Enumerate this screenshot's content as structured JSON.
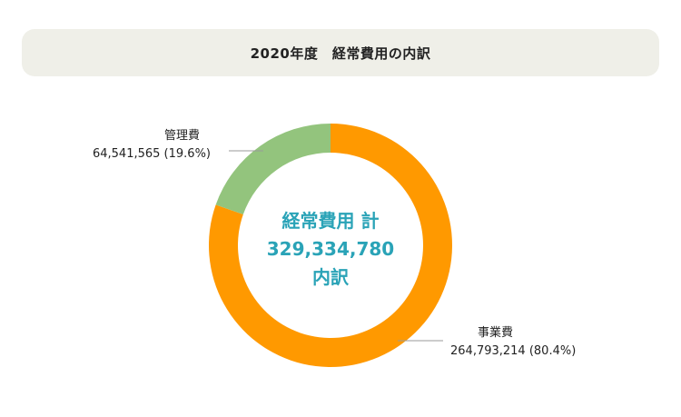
{
  "title": "2020年度　経常費用の内訳",
  "center": {
    "line1": "経常費用 計",
    "line2": "329,334,780",
    "line3": "内訳"
  },
  "colors": {
    "admin": "#93c47d",
    "business": "#ff9900",
    "center_text": "#2aa3b7",
    "title_bg": "#efefe8"
  },
  "chart_data": {
    "type": "pie",
    "title": "2020年度　経常費用の内訳",
    "total": 329334780,
    "slices": [
      {
        "label": "事業費",
        "value": 264793214,
        "percent": 80.4,
        "value_text": "264,793,214 (80.4%)",
        "color": "#ff9900"
      },
      {
        "label": "管理費",
        "value": 64541565,
        "percent": 19.6,
        "value_text": "64,541,565 (19.6%)",
        "color": "#93c47d"
      }
    ]
  }
}
